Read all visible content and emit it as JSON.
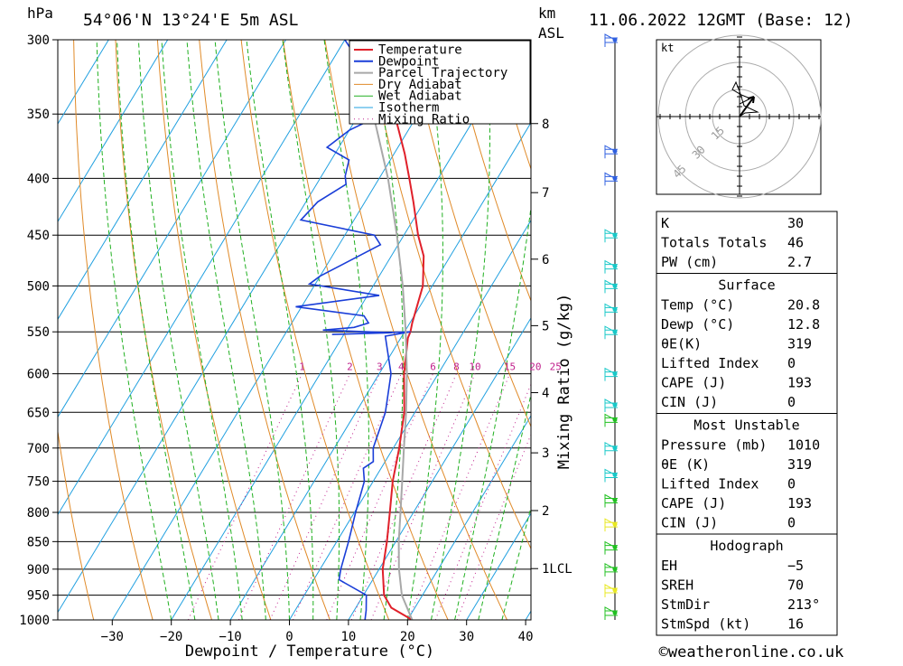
{
  "header": {
    "pressure_unit": "hPa",
    "location": "54°06'N  13°24'E  5m  ASL",
    "km_unit": "km",
    "km_asl": "ASL",
    "datetime": "11.06.2022  12GMT  (Base: 12)"
  },
  "colors": {
    "temperature": "#e0202a",
    "dewpoint": "#1a3ed8",
    "parcel": "#a8a8a8",
    "dry_adiabat": "#e08a28",
    "wet_adiabat": "#20b020",
    "isotherm": "#20a0e0",
    "mixing_ratio": "#c0208c",
    "wind_cyan": "#18c8c8",
    "wind_green": "#20c020",
    "wind_yellow": "#e8e820",
    "wind_blue": "#3060e0"
  },
  "chart_data": {
    "type": "line",
    "title": "54°06'N  13°24'E  5m  ASL",
    "xlabel": "Dewpoint / Temperature (°C)",
    "ylabel": "hPa",
    "x_ticks": [
      "−30",
      "−20",
      "−10",
      "0",
      "10",
      "20",
      "30",
      "40"
    ],
    "x_tick_values": [
      -30,
      -20,
      -10,
      0,
      10,
      20,
      30,
      40
    ],
    "pressure_levels": [
      "300",
      "350",
      "400",
      "450",
      "500",
      "550",
      "600",
      "650",
      "700",
      "750",
      "800",
      "850",
      "900",
      "950",
      "1000"
    ],
    "pressure_values": [
      300,
      350,
      400,
      450,
      500,
      550,
      600,
      650,
      700,
      750,
      800,
      850,
      900,
      950,
      1000
    ],
    "km_ticks": [
      {
        "label": "8",
        "p": 357
      },
      {
        "label": "7",
        "p": 412
      },
      {
        "label": "6",
        "p": 473
      },
      {
        "label": "5",
        "p": 543
      },
      {
        "label": "4",
        "p": 624
      },
      {
        "label": "3",
        "p": 707
      },
      {
        "label": "2",
        "p": 797
      },
      {
        "label": "1LCL",
        "p": 899
      }
    ],
    "mixing_ratio_label": "Mixing Ratio (g/kg)",
    "mixing_ratio_values": [
      "1",
      "2",
      "3",
      "4",
      "6",
      "8",
      "10",
      "15",
      "20",
      "25"
    ],
    "mixing_ratio_numbers": [
      1,
      2,
      3,
      4,
      6,
      8,
      10,
      15,
      20,
      25
    ],
    "legend_position": "top-right",
    "legend": [
      "Temperature",
      "Dewpoint",
      "Parcel Trajectory",
      "Dry Adiabat",
      "Wet Adiabat",
      "Isotherm",
      "Mixing Ratio"
    ],
    "series": [
      {
        "name": "Temperature",
        "points": [
          [
            20.8,
            1000
          ],
          [
            16,
            975
          ],
          [
            13.5,
            950
          ],
          [
            10.6,
            900
          ],
          [
            8.5,
            850
          ],
          [
            6,
            800
          ],
          [
            3.3,
            750
          ],
          [
            1,
            700
          ],
          [
            -1.8,
            650
          ],
          [
            -5.8,
            600
          ],
          [
            -8.8,
            557
          ],
          [
            -9,
            550
          ],
          [
            -9.6,
            540
          ],
          [
            -11.6,
            500
          ],
          [
            -14.5,
            470
          ],
          [
            -17.6,
            450
          ],
          [
            -21.8,
            420
          ],
          [
            -24.9,
            400
          ],
          [
            -28.2,
            380
          ],
          [
            -32,
            360
          ],
          [
            -36,
            340
          ],
          [
            -41,
            320
          ],
          [
            -46,
            300
          ]
        ]
      },
      {
        "name": "Dewpoint",
        "points": [
          [
            12.8,
            1000
          ],
          [
            12,
            980
          ],
          [
            10.5,
            950
          ],
          [
            4.3,
            920
          ],
          [
            3.5,
            900
          ],
          [
            2,
            850
          ],
          [
            0.2,
            800
          ],
          [
            -1.5,
            750
          ],
          [
            -3,
            730
          ],
          [
            -2,
            720
          ],
          [
            -3.4,
            700
          ],
          [
            -5,
            650
          ],
          [
            -8,
            600
          ],
          [
            -12.8,
            555
          ],
          [
            -9,
            550
          ],
          [
            -22,
            553
          ],
          [
            -12,
            551
          ],
          [
            -24,
            548
          ],
          [
            -19,
            545
          ],
          [
            -17,
            540
          ],
          [
            -18.5,
            532
          ],
          [
            -31,
            522
          ],
          [
            -18,
            510
          ],
          [
            -31,
            498
          ],
          [
            -30,
            490
          ],
          [
            -26,
            472
          ],
          [
            -23,
            459
          ],
          [
            -25,
            450
          ],
          [
            -39,
            436
          ],
          [
            -38,
            420
          ],
          [
            -35,
            405
          ],
          [
            -36,
            398
          ],
          [
            -37,
            385
          ],
          [
            -42,
            375
          ],
          [
            -40,
            362
          ],
          [
            -36,
            350
          ],
          [
            -40,
            330
          ],
          [
            -45,
            315
          ],
          [
            -50,
            300
          ]
        ]
      },
      {
        "name": "Parcel Trajectory",
        "points": [
          [
            20.8,
            1000
          ],
          [
            16.5,
            950
          ],
          [
            13.3,
            899
          ],
          [
            10.5,
            850
          ],
          [
            7.8,
            800
          ],
          [
            4.9,
            750
          ],
          [
            1.8,
            700
          ],
          [
            -1.5,
            650
          ],
          [
            -5.3,
            600
          ],
          [
            -9.8,
            550
          ],
          [
            -15,
            500
          ],
          [
            -21.2,
            450
          ],
          [
            -28.5,
            400
          ],
          [
            -37.6,
            350
          ],
          [
            -49,
            300
          ]
        ]
      }
    ]
  },
  "hodograph": {
    "unit": "kt",
    "ring_labels": [
      "15",
      "30",
      "45"
    ]
  },
  "indices": {
    "top": [
      {
        "label": "K",
        "value": "30"
      },
      {
        "label": "Totals Totals",
        "value": "46"
      },
      {
        "label": "PW (cm)",
        "value": "2.7"
      }
    ],
    "surface": {
      "title": "Surface",
      "rows": [
        {
          "label": "Temp (°C)",
          "value": "20.8"
        },
        {
          "label": "Dewp (°C)",
          "value": "12.8"
        },
        {
          "label": "θE(K)",
          "value": "319"
        },
        {
          "label": "Lifted Index",
          "value": "0"
        },
        {
          "label": "CAPE (J)",
          "value": "193"
        },
        {
          "label": "CIN (J)",
          "value": "0"
        }
      ]
    },
    "most_unstable": {
      "title": "Most Unstable",
      "rows": [
        {
          "label": "Pressure (mb)",
          "value": "1010"
        },
        {
          "label": "θE (K)",
          "value": "319"
        },
        {
          "label": "Lifted Index",
          "value": "0"
        },
        {
          "label": "CAPE (J)",
          "value": "193"
        },
        {
          "label": "CIN (J)",
          "value": "0"
        }
      ]
    },
    "hodograph": {
      "title": "Hodograph",
      "rows": [
        {
          "label": "EH",
          "value": "−5"
        },
        {
          "label": "SREH",
          "value": "70"
        },
        {
          "label": "StmDir",
          "value": "213°"
        },
        {
          "label": "StmSpd (kt)",
          "value": "16"
        }
      ]
    }
  },
  "footer": {
    "credit": "©weatheronline.co.uk"
  }
}
